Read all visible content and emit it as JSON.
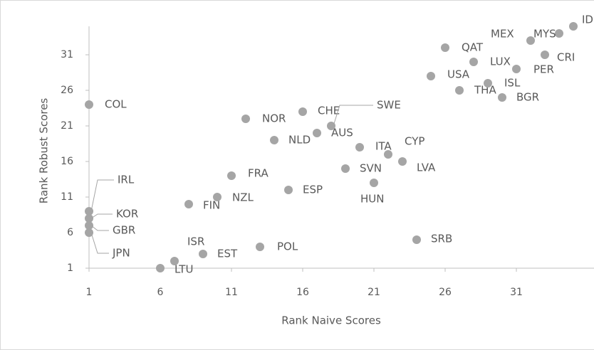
{
  "chart_data": {
    "type": "scatter",
    "x_label": "Rank Naive Scores",
    "y_label": "Rank Robust Scores",
    "xlim": [
      1,
      36
    ],
    "ylim": [
      1,
      35
    ],
    "xticks": [
      1,
      6,
      11,
      16,
      21,
      26,
      31
    ],
    "yticks": [
      1,
      6,
      11,
      16,
      21,
      26,
      31
    ],
    "color": "#a5a5a5",
    "point_labels": [
      "COL",
      "IRL",
      "KOR",
      "GBR",
      "JPN",
      "LTU",
      "ISR",
      "EST",
      "POL",
      "FIN",
      "NZL",
      "FRA",
      "ESP",
      "NOR",
      "NLD",
      "CHE",
      "AUS",
      "SWE",
      "ITA",
      "SVN",
      "HUN",
      "CYP",
      "LVA",
      "SRB",
      "USA",
      "QAT",
      "THA",
      "LUX",
      "ISL",
      "BGR",
      "PER",
      "MEX",
      "CRI",
      "MYS",
      "IDN"
    ],
    "x": [
      1,
      1,
      1,
      1,
      1,
      6,
      7,
      9,
      13,
      8,
      10,
      11,
      15,
      12,
      14,
      16,
      17,
      18,
      20,
      19,
      21,
      22,
      23,
      24,
      25,
      26,
      27,
      28,
      29,
      30,
      31,
      32,
      33,
      34,
      35
    ],
    "values": [
      24,
      9,
      8,
      7,
      6,
      1,
      2,
      3,
      4,
      10,
      11,
      14,
      12,
      22,
      19,
      23,
      20,
      21,
      18,
      15,
      13,
      17,
      16,
      5,
      28,
      32,
      26,
      30,
      27,
      25,
      29,
      33,
      31,
      34,
      35
    ]
  }
}
